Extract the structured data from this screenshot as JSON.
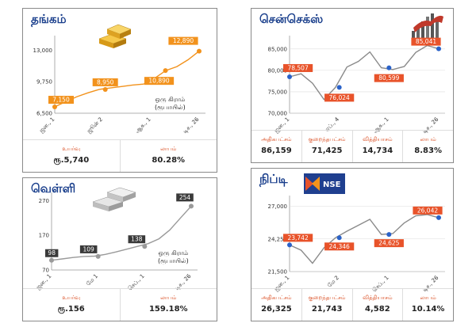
{
  "colors": {
    "gold": "#f2921c",
    "sensex_line": "#8a8a8a",
    "sensex_point": "#2a62c9",
    "silver": "#9a9a9a",
    "silver_label": "#3a3a3a",
    "nifty_line": "#8a8a8a",
    "nifty_point": "#2a62c9",
    "red_label": "#e8532a",
    "title": "#1a3f8c"
  },
  "panels": {
    "gold": {
      "title": "தங்கம்",
      "note": [
        "ஒரு கிராம்",
        "(ரூபாயில்)"
      ],
      "stats": [
        {
          "label": "உயர்வு",
          "value": "ரூ.5,740"
        },
        {
          "label": "லாபம்",
          "value": "80.28%"
        }
      ],
      "icon": "gold-bars-icon"
    },
    "sensex": {
      "title": "சென்செக்ஸ்",
      "stats": [
        {
          "label": "அதிகபட்சம்",
          "value": "86,159"
        },
        {
          "label": "குறைந்தபட்சம்",
          "value": "71,425"
        },
        {
          "label": "வித்தியாசம்",
          "value": "14,734"
        },
        {
          "label": "லாபம்",
          "value": "8.83%"
        }
      ],
      "icon": "bull-icon"
    },
    "silver": {
      "title": "வெள்ளி",
      "note": [
        "ஒரு கிராம்",
        "(ரூபாயில்)"
      ],
      "stats": [
        {
          "label": "உயர்வு",
          "value": "ரூ.156"
        },
        {
          "label": "லாபம்",
          "value": "159.18%"
        }
      ],
      "icon": "silver-bars-icon"
    },
    "nifty": {
      "title": "நிப்டி",
      "logo_text": "NSE",
      "stats": [
        {
          "label": "அதிகபட்சம்",
          "value": "26,325"
        },
        {
          "label": "குறைந்தபட்சம்",
          "value": "21,743"
        },
        {
          "label": "வித்தியாசம்",
          "value": "4,582"
        },
        {
          "label": "லாபம்",
          "value": "10.14%"
        }
      ],
      "icon": "nse-logo-icon"
    }
  },
  "chart_data": [
    {
      "id": "gold",
      "type": "line",
      "x": [
        "ஜன., 1",
        "ஜூன் 2",
        "ஆக., 1",
        "டிச., 26"
      ],
      "yticks": [
        6500,
        9750,
        13000
      ],
      "ylim": [
        6500,
        14000
      ],
      "points": [
        [
          0,
          7150
        ],
        [
          1.05,
          8950
        ],
        [
          2.3,
          10890
        ],
        [
          3,
          12890
        ]
      ],
      "path": [
        7150,
        7700,
        8200,
        8600,
        8950,
        9100,
        9250,
        9400,
        9500,
        10100,
        10890,
        11300,
        12000,
        12890
      ],
      "grid": false
    },
    {
      "id": "sensex",
      "type": "line",
      "x": [
        "ஜன., 1",
        "ஏப்., 4",
        "ஆக., 1",
        "டிச., 26"
      ],
      "yticks": [
        70000,
        75000,
        80000,
        85000
      ],
      "ylim": [
        70000,
        87000
      ],
      "points": [
        [
          0,
          78507
        ],
        [
          1,
          76024
        ],
        [
          2,
          80599
        ],
        [
          3,
          85041
        ]
      ],
      "path": [
        78507,
        79200,
        77000,
        73200,
        76024,
        80800,
        82100,
        84300,
        80599,
        80200,
        80900,
        84200,
        85800,
        85041
      ],
      "grid": true
    },
    {
      "id": "silver",
      "type": "line",
      "x": [
        "ஜன., 1",
        "மே 1",
        "செப்., 1",
        "டிச., 26"
      ],
      "yticks": [
        70,
        170,
        270
      ],
      "ylim": [
        70,
        280
      ],
      "points": [
        [
          0,
          98
        ],
        [
          1,
          109
        ],
        [
          2,
          138
        ],
        [
          3,
          254
        ]
      ],
      "path": [
        98,
        102,
        106,
        109,
        110,
        115,
        122,
        130,
        138,
        146,
        160,
        185,
        220,
        254
      ],
      "grid": false
    },
    {
      "id": "nifty",
      "type": "line",
      "x": [
        "ஜன., 1",
        "மே 2",
        "செப்., 1",
        "டிச., 26"
      ],
      "yticks": [
        21500,
        24250,
        27000
      ],
      "ylim": [
        21500,
        27500
      ],
      "points": [
        [
          0,
          23742
        ],
        [
          1,
          24346
        ],
        [
          2,
          24625
        ],
        [
          3,
          26042
        ]
      ],
      "path": [
        23742,
        23300,
        22200,
        23500,
        24346,
        24900,
        25400,
        25900,
        24625,
        24700,
        25600,
        26200,
        26300,
        26042
      ],
      "grid": true
    }
  ],
  "point_labels": {
    "gold": [
      "7,150",
      "8,950",
      "10,890",
      "12,890"
    ],
    "sensex": [
      "78,507",
      "76,024",
      "80,599",
      "85,041"
    ],
    "silver": [
      "98",
      "109",
      "138",
      "254"
    ],
    "nifty": [
      "23,742",
      "24,346",
      "24,625",
      "26,042"
    ]
  },
  "ytick_labels": {
    "gold": [
      "6,500",
      "9,750",
      "13,000"
    ],
    "sensex": [
      "70,000",
      "75,000",
      "80,000",
      "85,000"
    ],
    "silver": [
      "70",
      "170",
      "270"
    ],
    "nifty": [
      "21,500",
      "24,250",
      "27,000"
    ]
  }
}
